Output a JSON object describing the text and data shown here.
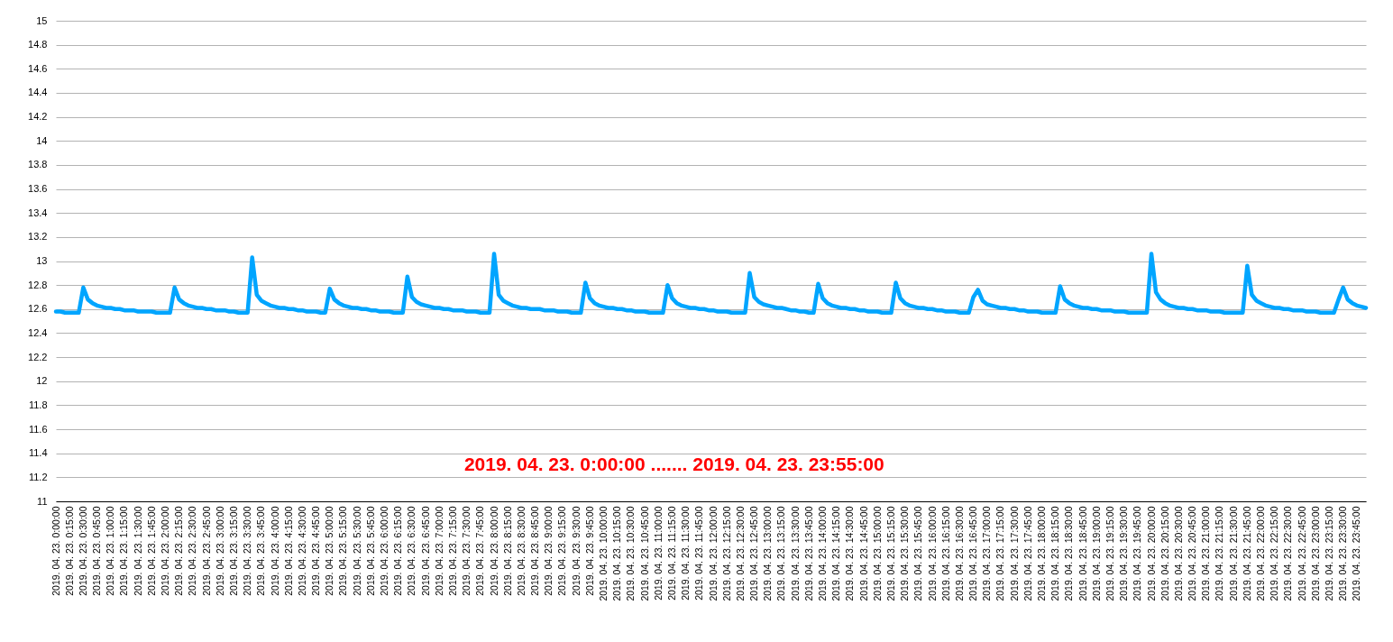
{
  "chart_data": {
    "type": "line",
    "categories": [
      "2019. 04. 23. 0:00:00",
      null,
      null,
      "2019. 04. 23. 0:15:00",
      null,
      null,
      "2019. 04. 23. 0:30:00",
      null,
      null,
      "2019. 04. 23. 0:45:00",
      null,
      null,
      "2019. 04. 23. 1:00:00",
      null,
      null,
      "2019. 04. 23. 1:15:00",
      null,
      null,
      "2019. 04. 23. 1:30:00",
      null,
      null,
      "2019. 04. 23. 1:45:00",
      null,
      null,
      "2019. 04. 23. 2:00:00",
      null,
      null,
      "2019. 04. 23. 2:15:00",
      null,
      null,
      "2019. 04. 23. 2:30:00",
      null,
      null,
      "2019. 04. 23. 2:45:00",
      null,
      null,
      "2019. 04. 23. 3:00:00",
      null,
      null,
      "2019. 04. 23. 3:15:00",
      null,
      null,
      "2019. 04. 23. 3:30:00",
      null,
      null,
      "2019. 04. 23. 3:45:00",
      null,
      null,
      "2019. 04. 23. 4:00:00",
      null,
      null,
      "2019. 04. 23. 4:15:00",
      null,
      null,
      "2019. 04. 23. 4:30:00",
      null,
      null,
      "2019. 04. 23. 4:45:00",
      null,
      null,
      "2019. 04. 23. 5:00:00",
      null,
      null,
      "2019. 04. 23. 5:15:00",
      null,
      null,
      "2019. 04. 23. 5:30:00",
      null,
      null,
      "2019. 04. 23. 5:45:00",
      null,
      null,
      "2019. 04. 23. 6:00:00",
      null,
      null,
      "2019. 04. 23. 6:15:00",
      null,
      null,
      "2019. 04. 23. 6:30:00",
      null,
      null,
      "2019. 04. 23. 6:45:00",
      null,
      null,
      "2019. 04. 23. 7:00:00",
      null,
      null,
      "2019. 04. 23. 7:15:00",
      null,
      null,
      "2019. 04. 23. 7:30:00",
      null,
      null,
      "2019. 04. 23. 7:45:00",
      null,
      null,
      "2019. 04. 23. 8:00:00",
      null,
      null,
      "2019. 04. 23. 8:15:00",
      null,
      null,
      "2019. 04. 23. 8:30:00",
      null,
      null,
      "2019. 04. 23. 8:45:00",
      null,
      null,
      "2019. 04. 23. 9:00:00",
      null,
      null,
      "2019. 04. 23. 9:15:00",
      null,
      null,
      "2019. 04. 23. 9:30:00",
      null,
      null,
      "2019. 04. 23. 9:45:00",
      null,
      null,
      "2019. 04. 23. 10:00:00",
      null,
      null,
      "2019. 04. 23. 10:15:00",
      null,
      null,
      "2019. 04. 23. 10:30:00",
      null,
      null,
      "2019. 04. 23. 10:45:00",
      null,
      null,
      "2019. 04. 23. 11:00:00",
      null,
      null,
      "2019. 04. 23. 11:15:00",
      null,
      null,
      "2019. 04. 23. 11:30:00",
      null,
      null,
      "2019. 04. 23. 11:45:00",
      null,
      null,
      "2019. 04. 23. 12:00:00",
      null,
      null,
      "2019. 04. 23. 12:15:00",
      null,
      null,
      "2019. 04. 23. 12:30:00",
      null,
      null,
      "2019. 04. 23. 12:45:00",
      null,
      null,
      "2019. 04. 23. 13:00:00",
      null,
      null,
      "2019. 04. 23. 13:15:00",
      null,
      null,
      "2019. 04. 23. 13:30:00",
      null,
      null,
      "2019. 04. 23. 13:45:00",
      null,
      null,
      "2019. 04. 23. 14:00:00",
      null,
      null,
      "2019. 04. 23. 14:15:00",
      null,
      null,
      "2019. 04. 23. 14:30:00",
      null,
      null,
      "2019. 04. 23. 14:45:00",
      null,
      null,
      "2019. 04. 23. 15:00:00",
      null,
      null,
      "2019. 04. 23. 15:15:00",
      null,
      null,
      "2019. 04. 23. 15:30:00",
      null,
      null,
      "2019. 04. 23. 15:45:00",
      null,
      null,
      "2019. 04. 23. 16:00:00",
      null,
      null,
      "2019. 04. 23. 16:15:00",
      null,
      null,
      "2019. 04. 23. 16:30:00",
      null,
      null,
      "2019. 04. 23. 16:45:00",
      null,
      null,
      "2019. 04. 23. 17:00:00",
      null,
      null,
      "2019. 04. 23. 17:15:00",
      null,
      null,
      "2019. 04. 23. 17:30:00",
      null,
      null,
      "2019. 04. 23. 17:45:00",
      null,
      null,
      "2019. 04. 23. 18:00:00",
      null,
      null,
      "2019. 04. 23. 18:15:00",
      null,
      null,
      "2019. 04. 23. 18:30:00",
      null,
      null,
      "2019. 04. 23. 18:45:00",
      null,
      null,
      "2019. 04. 23. 19:00:00",
      null,
      null,
      "2019. 04. 23. 19:15:00",
      null,
      null,
      "2019. 04. 23. 19:30:00",
      null,
      null,
      "2019. 04. 23. 19:45:00",
      null,
      null,
      "2019. 04. 23. 20:00:00",
      null,
      null,
      "2019. 04. 23. 20:15:00",
      null,
      null,
      "2019. 04. 23. 20:30:00",
      null,
      null,
      "2019. 04. 23. 20:45:00",
      null,
      null,
      "2019. 04. 23. 21:00:00",
      null,
      null,
      "2019. 04. 23. 21:15:00",
      null,
      null,
      "2019. 04. 23. 21:30:00",
      null,
      null,
      "2019. 04. 23. 21:45:00",
      null,
      null,
      "2019. 04. 23. 22:00:00",
      null,
      null,
      "2019. 04. 23. 22:15:00",
      null,
      null,
      "2019. 04. 23. 22:30:00",
      null,
      null,
      "2019. 04. 23. 22:45:00",
      null,
      null,
      "2019. 04. 23. 23:00:00",
      null,
      null,
      "2019. 04. 23. 23:15:00",
      null,
      null,
      "2019. 04. 23. 23:30:00",
      null,
      null,
      "2019. 04. 23. 23:45:00",
      null,
      null
    ],
    "series": [
      {
        "color": "#00a5ff",
        "values": [
          12.58,
          12.58,
          12.57,
          12.57,
          12.57,
          12.57,
          12.78,
          12.68,
          12.65,
          12.63,
          12.62,
          12.61,
          12.61,
          12.6,
          12.6,
          12.59,
          12.59,
          12.59,
          12.58,
          12.58,
          12.58,
          12.58,
          12.57,
          12.57,
          12.57,
          12.57,
          12.78,
          12.68,
          12.65,
          12.63,
          12.62,
          12.61,
          12.61,
          12.6,
          12.6,
          12.59,
          12.59,
          12.59,
          12.58,
          12.58,
          12.57,
          12.57,
          12.57,
          13.03,
          12.72,
          12.67,
          12.65,
          12.63,
          12.62,
          12.61,
          12.61,
          12.6,
          12.6,
          12.59,
          12.59,
          12.58,
          12.58,
          12.58,
          12.57,
          12.57,
          12.77,
          12.68,
          12.65,
          12.63,
          12.62,
          12.61,
          12.61,
          12.6,
          12.6,
          12.59,
          12.59,
          12.58,
          12.58,
          12.58,
          12.57,
          12.57,
          12.57,
          12.87,
          12.7,
          12.66,
          12.64,
          12.63,
          12.62,
          12.61,
          12.61,
          12.6,
          12.6,
          12.59,
          12.59,
          12.59,
          12.58,
          12.58,
          12.58,
          12.57,
          12.57,
          12.57,
          13.06,
          12.72,
          12.67,
          12.65,
          12.63,
          12.62,
          12.61,
          12.61,
          12.6,
          12.6,
          12.6,
          12.59,
          12.59,
          12.59,
          12.58,
          12.58,
          12.58,
          12.57,
          12.57,
          12.57,
          12.82,
          12.69,
          12.65,
          12.63,
          12.62,
          12.61,
          12.61,
          12.6,
          12.6,
          12.59,
          12.59,
          12.58,
          12.58,
          12.58,
          12.57,
          12.57,
          12.57,
          12.57,
          12.8,
          12.69,
          12.65,
          12.63,
          12.62,
          12.61,
          12.61,
          12.6,
          12.6,
          12.59,
          12.59,
          12.58,
          12.58,
          12.58,
          12.57,
          12.57,
          12.57,
          12.57,
          12.9,
          12.7,
          12.66,
          12.64,
          12.63,
          12.62,
          12.61,
          12.61,
          12.6,
          12.59,
          12.59,
          12.58,
          12.58,
          12.57,
          12.57,
          12.81,
          12.69,
          12.65,
          12.63,
          12.62,
          12.61,
          12.61,
          12.6,
          12.6,
          12.59,
          12.59,
          12.58,
          12.58,
          12.58,
          12.57,
          12.57,
          12.57,
          12.82,
          12.69,
          12.65,
          12.63,
          12.62,
          12.61,
          12.61,
          12.6,
          12.6,
          12.59,
          12.59,
          12.58,
          12.58,
          12.58,
          12.57,
          12.57,
          12.57,
          12.7,
          12.76,
          12.67,
          12.64,
          12.63,
          12.62,
          12.61,
          12.61,
          12.6,
          12.6,
          12.59,
          12.59,
          12.58,
          12.58,
          12.58,
          12.57,
          12.57,
          12.57,
          12.57,
          12.79,
          12.68,
          12.65,
          12.63,
          12.62,
          12.61,
          12.61,
          12.6,
          12.6,
          12.59,
          12.59,
          12.59,
          12.58,
          12.58,
          12.58,
          12.57,
          12.57,
          12.57,
          12.57,
          12.57,
          13.06,
          12.74,
          12.68,
          12.65,
          12.63,
          12.62,
          12.61,
          12.61,
          12.6,
          12.6,
          12.59,
          12.59,
          12.59,
          12.58,
          12.58,
          12.58,
          12.57,
          12.57,
          12.57,
          12.57,
          12.57,
          12.96,
          12.72,
          12.67,
          12.65,
          12.63,
          12.62,
          12.61,
          12.61,
          12.6,
          12.6,
          12.59,
          12.59,
          12.59,
          12.58,
          12.58,
          12.58,
          12.57,
          12.57,
          12.57,
          12.57,
          12.68,
          12.78,
          12.68,
          12.65,
          12.63,
          12.62,
          12.61
        ]
      }
    ],
    "ylim": [
      11,
      15
    ],
    "yticks": [
      11,
      11.2,
      11.4,
      11.6,
      11.8,
      12,
      12.2,
      12.4,
      12.6,
      12.8,
      13,
      13.2,
      13.4,
      13.6,
      13.8,
      14,
      14.2,
      14.4,
      14.6,
      14.8,
      15
    ],
    "grid": "y",
    "line_style": "solid",
    "annotations": [
      "2019. 04. 23. 0:00:00 ....... 2019. 04. 23. 23:55:00"
    ]
  }
}
